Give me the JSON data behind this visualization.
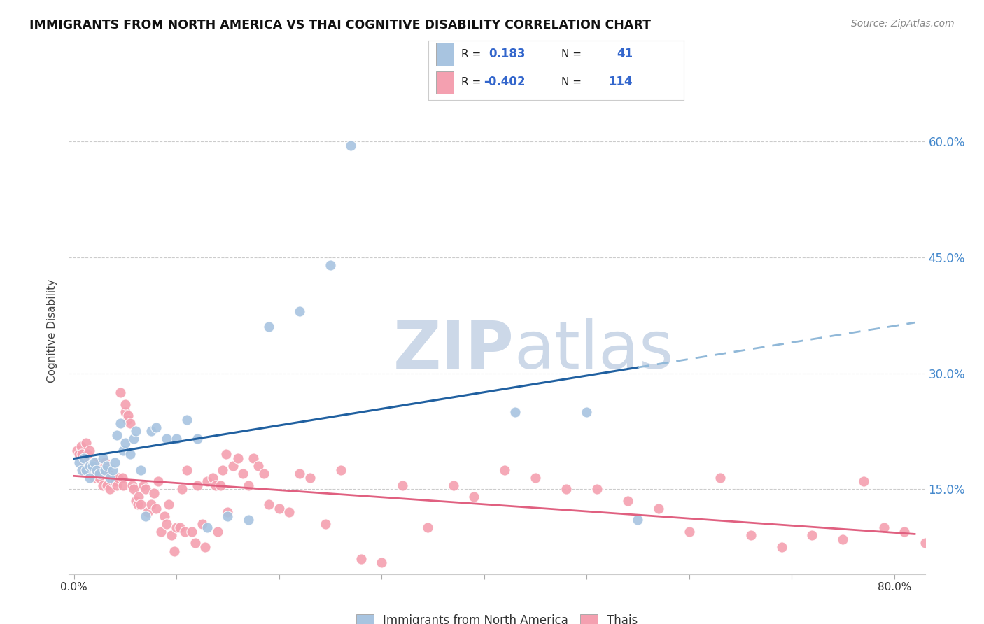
{
  "title": "IMMIGRANTS FROM NORTH AMERICA VS THAI COGNITIVE DISABILITY CORRELATION CHART",
  "source": "Source: ZipAtlas.com",
  "ylabel": "Cognitive Disability",
  "ytick_labels": [
    "15.0%",
    "30.0%",
    "45.0%",
    "60.0%"
  ],
  "ytick_values": [
    0.15,
    0.3,
    0.45,
    0.6
  ],
  "xtick_vals": [
    0.0,
    0.1,
    0.2,
    0.3,
    0.4,
    0.5,
    0.6,
    0.7,
    0.8
  ],
  "xtick_labels": [
    "0.0%",
    "",
    "",
    "",
    "",
    "",
    "",
    "",
    "80.0%"
  ],
  "xlim": [
    -0.005,
    0.83
  ],
  "ylim": [
    0.04,
    0.67
  ],
  "legend_label_blue": "Immigrants from North America",
  "legend_label_pink": "Thais",
  "R_blue": "0.183",
  "N_blue": "41",
  "R_pink": "-0.402",
  "N_pink": "114",
  "blue_color": "#a8c4e0",
  "pink_color": "#f4a0b0",
  "blue_line_color": "#2060a0",
  "pink_line_color": "#e06080",
  "dashed_line_color": "#90b8d8",
  "watermark_color": "#ccd8e8",
  "background_color": "#ffffff",
  "blue_scatter_x": [
    0.005,
    0.008,
    0.01,
    0.012,
    0.015,
    0.015,
    0.018,
    0.02,
    0.022,
    0.025,
    0.028,
    0.03,
    0.032,
    0.035,
    0.038,
    0.04,
    0.042,
    0.045,
    0.048,
    0.05,
    0.055,
    0.058,
    0.06,
    0.065,
    0.07,
    0.075,
    0.08,
    0.09,
    0.1,
    0.11,
    0.12,
    0.13,
    0.15,
    0.17,
    0.19,
    0.22,
    0.25,
    0.27,
    0.43,
    0.5,
    0.55
  ],
  "blue_scatter_y": [
    0.185,
    0.175,
    0.19,
    0.175,
    0.18,
    0.165,
    0.18,
    0.185,
    0.175,
    0.17,
    0.19,
    0.175,
    0.18,
    0.165,
    0.175,
    0.185,
    0.22,
    0.235,
    0.2,
    0.21,
    0.195,
    0.215,
    0.225,
    0.175,
    0.115,
    0.225,
    0.23,
    0.215,
    0.215,
    0.24,
    0.215,
    0.1,
    0.115,
    0.11,
    0.36,
    0.38,
    0.44,
    0.595,
    0.25,
    0.25,
    0.11
  ],
  "pink_scatter_x": [
    0.003,
    0.005,
    0.007,
    0.008,
    0.01,
    0.01,
    0.012,
    0.013,
    0.015,
    0.015,
    0.017,
    0.018,
    0.02,
    0.02,
    0.022,
    0.022,
    0.024,
    0.025,
    0.025,
    0.027,
    0.028,
    0.03,
    0.03,
    0.032,
    0.033,
    0.035,
    0.035,
    0.037,
    0.038,
    0.04,
    0.042,
    0.043,
    0.045,
    0.047,
    0.048,
    0.05,
    0.05,
    0.052,
    0.053,
    0.055,
    0.057,
    0.058,
    0.06,
    0.062,
    0.063,
    0.065,
    0.068,
    0.07,
    0.072,
    0.075,
    0.078,
    0.08,
    0.082,
    0.085,
    0.088,
    0.09,
    0.092,
    0.095,
    0.098,
    0.1,
    0.103,
    0.105,
    0.108,
    0.11,
    0.115,
    0.118,
    0.12,
    0.125,
    0.128,
    0.13,
    0.135,
    0.138,
    0.14,
    0.143,
    0.145,
    0.148,
    0.15,
    0.155,
    0.16,
    0.165,
    0.17,
    0.175,
    0.18,
    0.185,
    0.19,
    0.2,
    0.21,
    0.22,
    0.23,
    0.245,
    0.26,
    0.28,
    0.3,
    0.32,
    0.345,
    0.37,
    0.39,
    0.42,
    0.45,
    0.48,
    0.51,
    0.54,
    0.57,
    0.6,
    0.63,
    0.66,
    0.69,
    0.72,
    0.75,
    0.77,
    0.79,
    0.81,
    0.83,
    0.84
  ],
  "pink_scatter_y": [
    0.2,
    0.195,
    0.205,
    0.195,
    0.185,
    0.175,
    0.21,
    0.195,
    0.18,
    0.2,
    0.175,
    0.17,
    0.18,
    0.165,
    0.185,
    0.17,
    0.175,
    0.165,
    0.175,
    0.18,
    0.155,
    0.175,
    0.185,
    0.155,
    0.17,
    0.165,
    0.15,
    0.165,
    0.16,
    0.16,
    0.155,
    0.165,
    0.275,
    0.165,
    0.155,
    0.25,
    0.26,
    0.24,
    0.245,
    0.235,
    0.155,
    0.15,
    0.135,
    0.13,
    0.14,
    0.13,
    0.155,
    0.15,
    0.12,
    0.13,
    0.145,
    0.125,
    0.16,
    0.095,
    0.115,
    0.105,
    0.13,
    0.09,
    0.07,
    0.1,
    0.1,
    0.15,
    0.095,
    0.175,
    0.095,
    0.08,
    0.155,
    0.105,
    0.075,
    0.16,
    0.165,
    0.155,
    0.095,
    0.155,
    0.175,
    0.195,
    0.12,
    0.18,
    0.19,
    0.17,
    0.155,
    0.19,
    0.18,
    0.17,
    0.13,
    0.125,
    0.12,
    0.17,
    0.165,
    0.105,
    0.175,
    0.06,
    0.055,
    0.155,
    0.1,
    0.155,
    0.14,
    0.175,
    0.165,
    0.15,
    0.15,
    0.135,
    0.125,
    0.095,
    0.165,
    0.09,
    0.075,
    0.09,
    0.085,
    0.16,
    0.1,
    0.095,
    0.08,
    0.075
  ]
}
